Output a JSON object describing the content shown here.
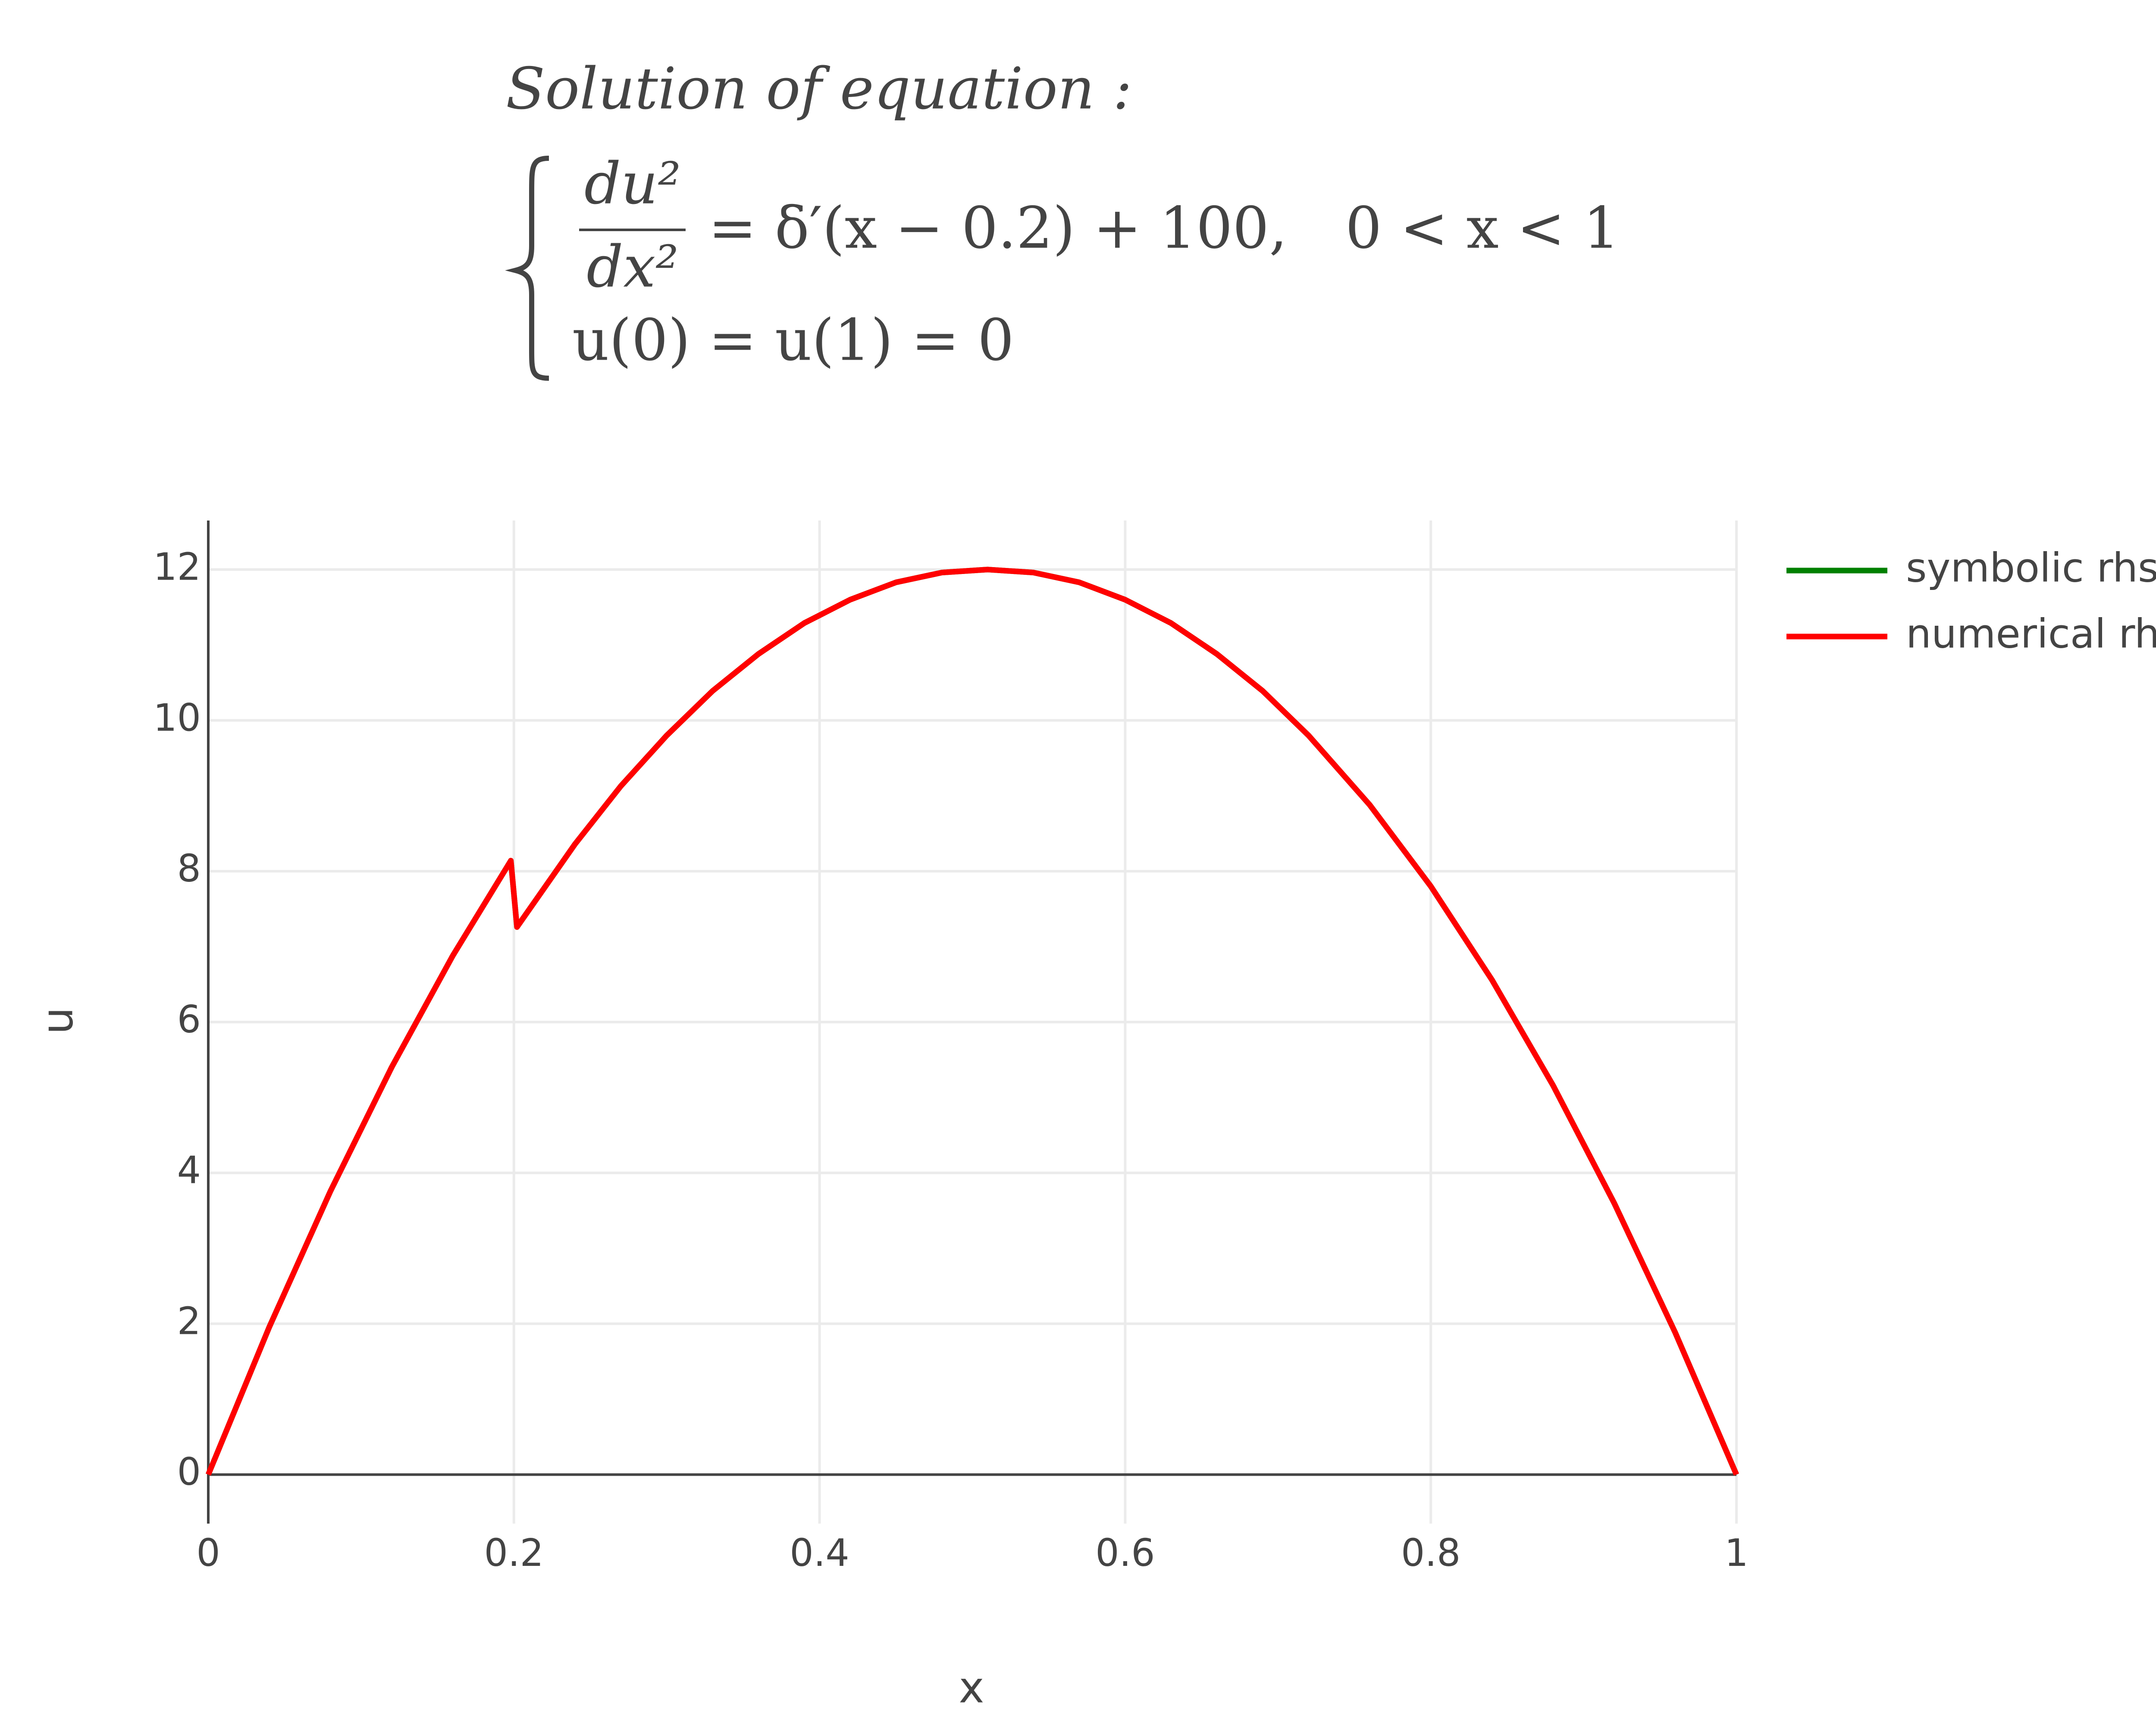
{
  "chart_data": {
    "type": "line",
    "title": {
      "heading": "Solution of equation :",
      "numerator": "du²",
      "denominator": "dx²",
      "rhs": "= δ′(x − 0.2) + 100,",
      "domain": "0 < x < 1",
      "boundary": "u(0) = u(1) = 0"
    },
    "x_label": "x",
    "y_label": "u",
    "x": [
      0,
      0.04,
      0.08,
      0.12,
      0.16,
      0.198,
      0.202,
      0.24,
      0.27,
      0.3,
      0.33,
      0.36,
      0.39,
      0.42,
      0.45,
      0.48,
      0.51,
      0.54,
      0.57,
      0.6,
      0.63,
      0.66,
      0.69,
      0.72,
      0.76,
      0.8,
      0.84,
      0.88,
      0.92,
      0.96,
      1.0
    ],
    "series": [
      {
        "name": "symbolic rhs",
        "color": "#008000",
        "values": [
          0,
          1.96,
          3.76,
          5.4,
          6.88,
          8.14,
          7.26,
          8.36,
          9.13,
          9.8,
          10.39,
          10.88,
          11.29,
          11.6,
          11.83,
          11.96,
          12.0,
          11.96,
          11.83,
          11.6,
          11.29,
          10.88,
          10.39,
          9.8,
          8.88,
          7.8,
          6.56,
          5.16,
          3.6,
          1.88,
          0
        ]
      },
      {
        "name": "numerical rhs",
        "color": "#ff0000",
        "values": [
          0,
          1.96,
          3.76,
          5.4,
          6.88,
          8.14,
          7.26,
          8.36,
          9.13,
          9.8,
          10.39,
          10.88,
          11.29,
          11.6,
          11.83,
          11.96,
          12.0,
          11.96,
          11.83,
          11.6,
          11.29,
          10.88,
          10.39,
          9.8,
          8.88,
          7.8,
          6.56,
          5.16,
          3.6,
          1.88,
          0
        ]
      }
    ],
    "xlim": [
      0,
      1
    ],
    "ylim": [
      -0.65,
      12.65
    ],
    "xticks": [
      0,
      0.2,
      0.4,
      0.6,
      0.8,
      1
    ],
    "yticks": [
      0,
      2,
      4,
      6,
      8,
      10,
      12
    ],
    "grid": true,
    "legend": "right"
  }
}
